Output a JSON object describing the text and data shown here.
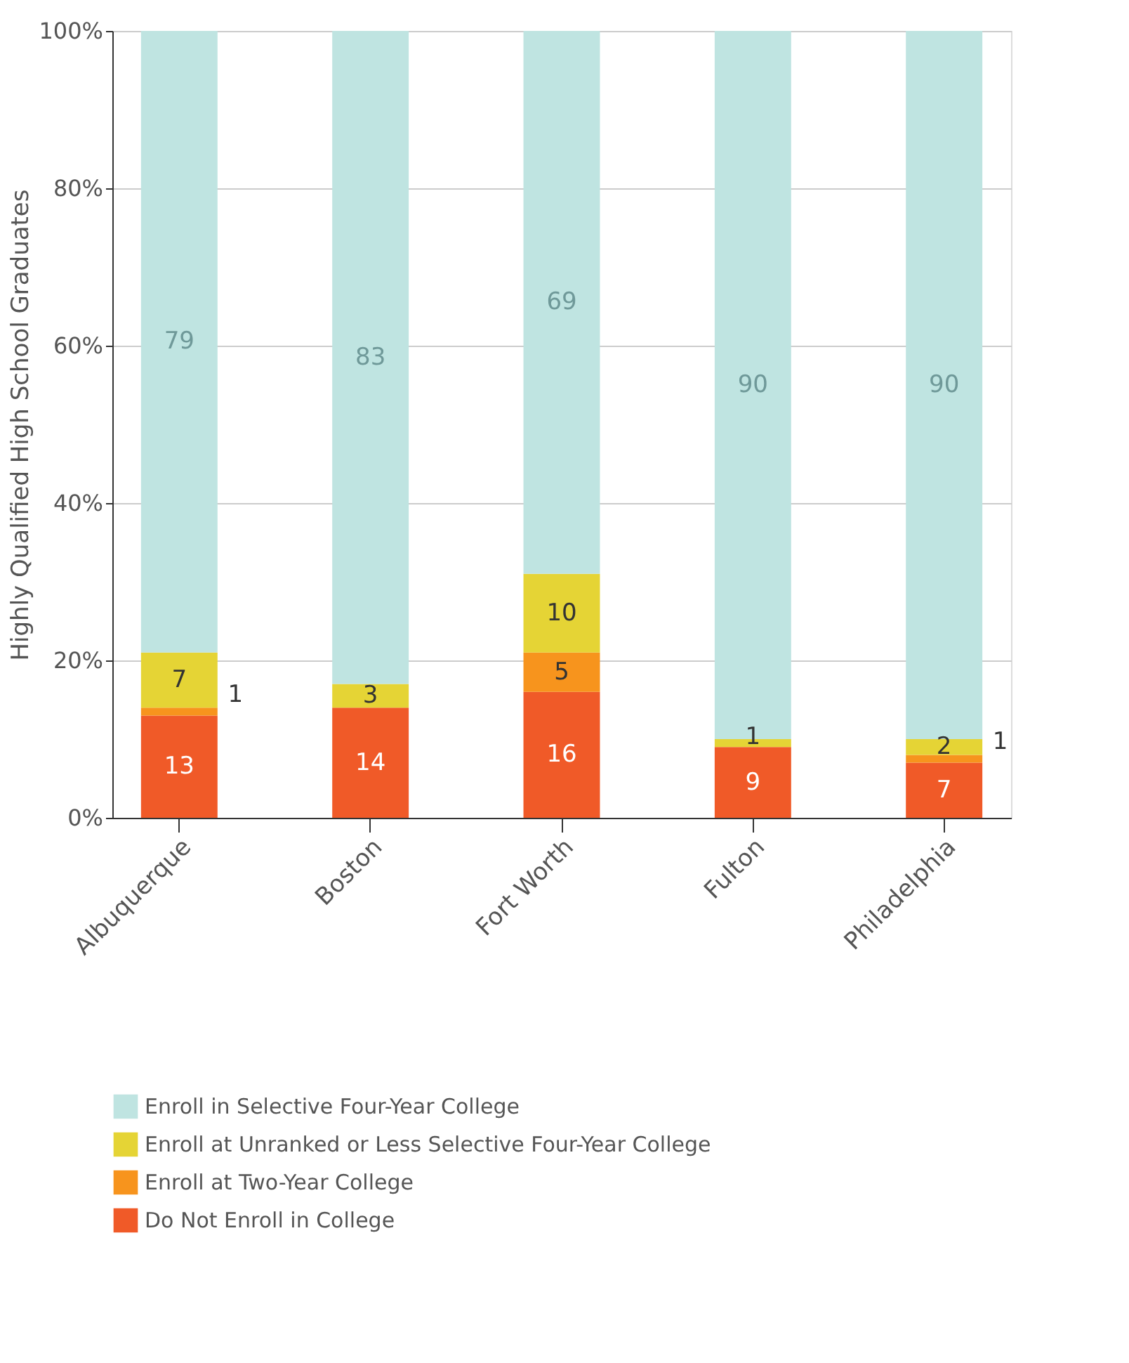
{
  "chart_data": {
    "type": "bar",
    "stacked": true,
    "ylabel": "Highly Qualified High School Graduates",
    "categories": [
      "Albuquerque",
      "Boston",
      "Fort Worth",
      "Fulton",
      "Philadelphia"
    ],
    "series": [
      {
        "name": "Do Not Enroll in College",
        "color": "#f05a28",
        "values": [
          13,
          14,
          16,
          9,
          7
        ],
        "value_labels": [
          "13",
          "14",
          "16",
          "9",
          "7"
        ]
      },
      {
        "name": "Enroll at Two-Year College",
        "color": "#f7941d",
        "values": [
          1,
          0,
          5,
          0,
          1
        ],
        "value_labels": [
          "1",
          null,
          "5",
          null,
          "1"
        ]
      },
      {
        "name": "Enroll at Unranked or Less Selective Four-Year College",
        "color": "#e5d435",
        "values": [
          7,
          3,
          10,
          1,
          2
        ],
        "value_labels": [
          "7",
          "3",
          "10",
          "1",
          "2"
        ]
      },
      {
        "name": "Enroll in Selective Four-Year College",
        "color": "#bfe4e1",
        "values": [
          79,
          83,
          69,
          90,
          90
        ],
        "value_labels": [
          "79",
          "83",
          "69",
          "90",
          "90"
        ]
      }
    ],
    "ylim": [
      0,
      100
    ],
    "yticks": [
      {
        "value": 0,
        "label": "0%"
      },
      {
        "value": 20,
        "label": "20%"
      },
      {
        "value": 40,
        "label": "40%"
      },
      {
        "value": 60,
        "label": "60%"
      },
      {
        "value": 80,
        "label": "80%"
      },
      {
        "value": 100,
        "label": "100%"
      }
    ],
    "grid": "y",
    "legend": "bottom"
  }
}
